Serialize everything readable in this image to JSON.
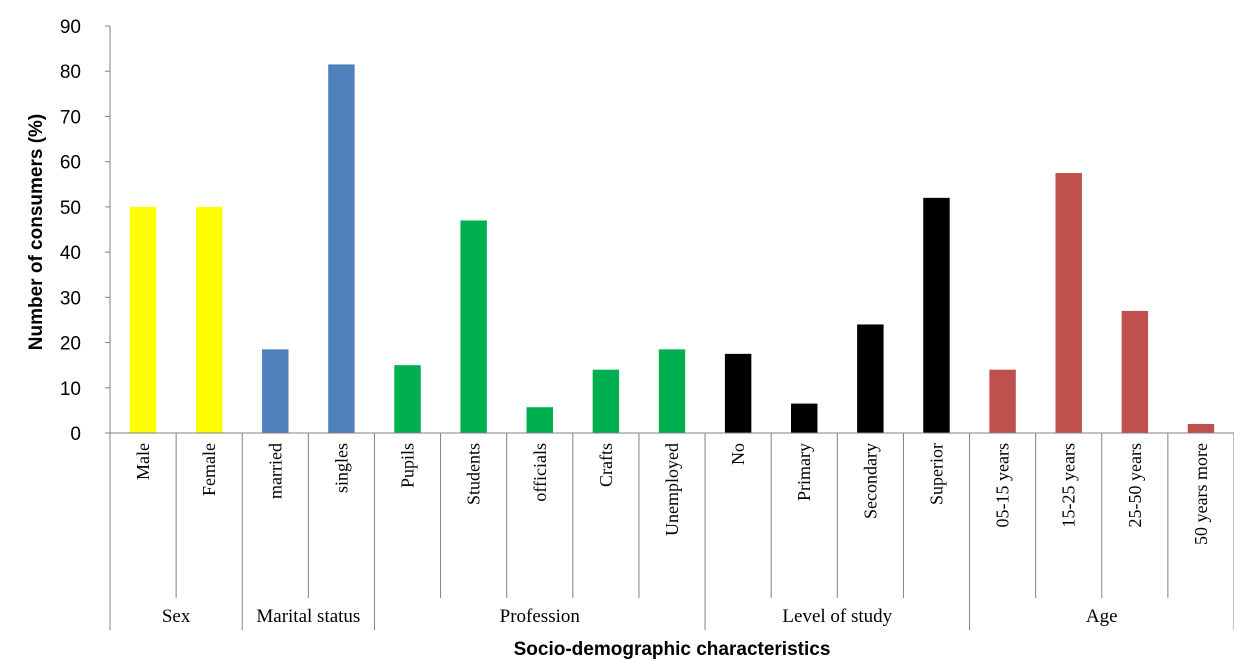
{
  "chart_data": {
    "type": "bar",
    "xlabel": "Socio-demographic characteristics",
    "ylabel": "Number of consumers (%)",
    "ylim": [
      0,
      90
    ],
    "yticks": [
      0,
      10,
      20,
      30,
      40,
      50,
      60,
      70,
      80,
      90
    ],
    "grid": false,
    "legend": "none",
    "groups": [
      {
        "name": "Sex",
        "color": "#FFFF00",
        "categories": [
          "Male",
          "Female"
        ],
        "values": [
          50,
          50
        ]
      },
      {
        "name": "Marital status",
        "color": "#4F81BD",
        "categories": [
          "married",
          "singles"
        ],
        "values": [
          18.5,
          81.5
        ]
      },
      {
        "name": "Profession",
        "color": "#00B050",
        "categories": [
          "Pupils",
          "Students",
          "officials",
          "Crafts",
          "Unemployed"
        ],
        "values": [
          15,
          47,
          5.7,
          14,
          18.5
        ]
      },
      {
        "name": "Level of study",
        "color": "#000000",
        "categories": [
          "No",
          "Primary",
          "Secondary",
          "Superior"
        ],
        "values": [
          17.5,
          6.5,
          24,
          52
        ]
      },
      {
        "name": "Age",
        "color": "#C0504D",
        "categories": [
          "05-15 years",
          "15-25 years",
          "25-50 years",
          "50 years more"
        ],
        "values": [
          14,
          57.5,
          27,
          2
        ]
      }
    ]
  }
}
